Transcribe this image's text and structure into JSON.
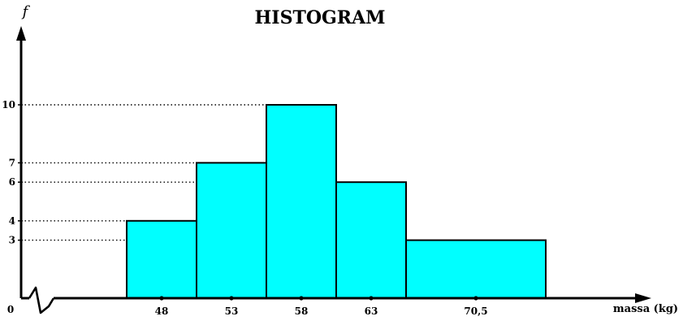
{
  "chart_data": {
    "type": "bar",
    "title": "HISTOGRAM",
    "ylabel": "f",
    "xlabel": "massa (kg)",
    "origin_label": "0",
    "categories": [
      "48",
      "53",
      "58",
      "63",
      "70,5"
    ],
    "class_bounds": [
      [
        45.5,
        50.5
      ],
      [
        50.5,
        55.5
      ],
      [
        55.5,
        60.5
      ],
      [
        60.5,
        65.5
      ],
      [
        65.5,
        75.5
      ]
    ],
    "values": [
      4,
      7,
      10,
      6,
      3
    ],
    "y_ticks": [
      "3",
      "4",
      "6",
      "7",
      "10"
    ],
    "y_tick_values": [
      3,
      4,
      6,
      7,
      10
    ],
    "ylim": [
      0,
      13
    ],
    "grid": false,
    "axis_break": true
  },
  "colors": {
    "bar_fill": "#00ffff",
    "bar_stroke": "#000000",
    "axis": "#000000"
  }
}
